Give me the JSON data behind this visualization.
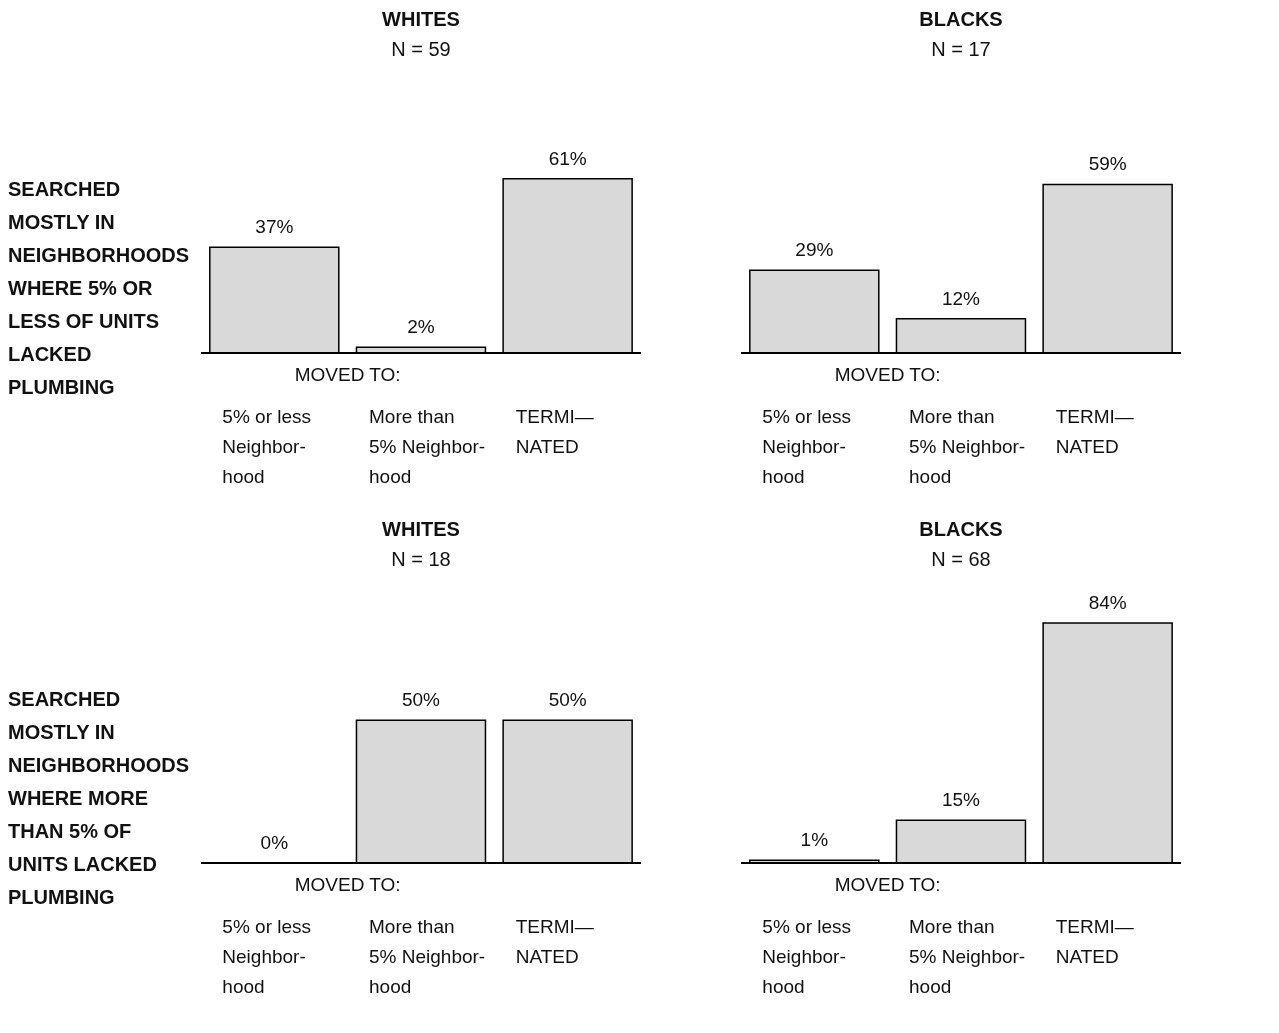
{
  "chart_data": [
    {
      "type": "bar",
      "title": "WHITES",
      "subtitle": "N = 59",
      "xlabel": "MOVED TO:",
      "annotations": [
        "SEARCHED MOSTLY IN NEIGHBORHOODS WHERE 5% OR LESS OF UNITS LACKED PLUMBING"
      ],
      "categories": [
        "5% or less\nNeighbor-\nhood",
        "More than\n5% Neighbor-\nhood",
        "TERMI—\nNATED"
      ],
      "values": [
        37,
        2,
        61
      ],
      "value_labels": [
        "37%",
        "2%",
        "61%"
      ],
      "color": "#d9d9d9",
      "legend": false,
      "grid": false
    },
    {
      "type": "bar",
      "title": "BLACKS",
      "subtitle": "N = 17",
      "xlabel": "MOVED TO:",
      "categories": [
        "5% or less\nNeighbor-\nhood",
        "More than\n5% Neighbor-\nhood",
        "TERMI—\nNATED"
      ],
      "values": [
        29,
        12,
        59
      ],
      "value_labels": [
        "29%",
        "12%",
        "59%"
      ],
      "color": "#d9d9d9",
      "legend": false,
      "grid": false
    },
    {
      "type": "bar",
      "title": "WHITES",
      "subtitle": "N = 18",
      "xlabel": "MOVED TO:",
      "annotations": [
        "SEARCHED MOSTLY IN NEIGHBORHOODS WHERE MORE THAN 5% OF UNITS LACKED PLUMBING"
      ],
      "categories": [
        "5% or less\nNeighbor-\nhood",
        "More than\n5% Neighbor-\nhood",
        "TERMI—\nNATED"
      ],
      "values": [
        0,
        50,
        50
      ],
      "value_labels": [
        "0%",
        "50%",
        "50%"
      ],
      "color": "#d9d9d9",
      "legend": false,
      "grid": false
    },
    {
      "type": "bar",
      "title": "BLACKS",
      "subtitle": "N = 68",
      "xlabel": "MOVED TO:",
      "categories": [
        "5% or less\nNeighbor-\nhood",
        "More than\n5% Neighbor-\nhood",
        "TERMI—\nNATED"
      ],
      "values": [
        1,
        15,
        84
      ],
      "value_labels": [
        "1%",
        "15%",
        "84%"
      ],
      "color": "#d9d9d9",
      "legend": false,
      "grid": false
    }
  ]
}
